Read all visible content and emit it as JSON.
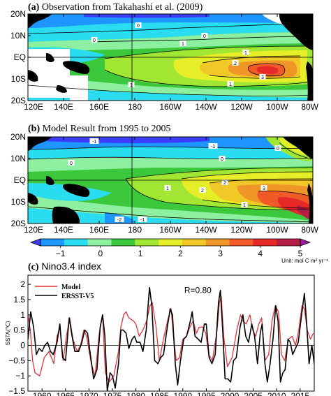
{
  "chart_data": [
    {
      "type": "heatmap",
      "panel": "(a)",
      "title": "Observation from Takahashi et al. (2009)",
      "x_ticks": [
        "120E",
        "140E",
        "160E",
        "180",
        "160W",
        "140W",
        "120W",
        "100W",
        "80W"
      ],
      "y_ticks": [
        "20N",
        "10N",
        "EQ",
        "10S",
        "20S"
      ],
      "xlim": [
        120,
        280
      ],
      "ylim": [
        -20,
        20
      ],
      "contour_labels": [
        "0",
        "0",
        "1",
        "1",
        "2",
        "3",
        "1",
        "0",
        "1"
      ]
    },
    {
      "type": "heatmap",
      "panel": "(b)",
      "title": "Model Result from 1995 to 2005",
      "x_ticks": [
        "120E",
        "140E",
        "160E",
        "180",
        "160W",
        "140W",
        "120W",
        "100W",
        "80W"
      ],
      "y_ticks": [
        "20N",
        "10N",
        "EQ",
        "10S",
        "20S"
      ],
      "xlim": [
        120,
        280
      ],
      "ylim": [
        -20,
        20
      ],
      "contour_labels": [
        "-1",
        "-1",
        "0",
        "0",
        "1",
        "2",
        "2",
        "3",
        "1",
        "-2",
        "-1",
        "0"
      ]
    },
    {
      "type": "colorbar",
      "ticks": [
        "−1",
        "0",
        "1",
        "2",
        "3",
        "4",
        "5"
      ],
      "range": [
        -1.5,
        5
      ],
      "unit": "Unit: mol C m² yr⁻¹",
      "colors": [
        "#3c3cff",
        "#1e96ff",
        "#2adcf0",
        "#8cf0a0",
        "#3cc83c",
        "#a0e632",
        "#e6ee28",
        "#f0c828",
        "#f09628",
        "#f05a28",
        "#e62828",
        "#b41e46",
        "#a01ea0"
      ]
    },
    {
      "type": "line",
      "panel": "(c)",
      "title": "Nino3.4 index",
      "ylabel": "SSTA(℃)",
      "ylim": [
        -1.5,
        2.3
      ],
      "xlim": [
        1957,
        2018
      ],
      "y_ticks": [
        "2",
        "1.5",
        "1",
        "0.5",
        "0",
        "−0.5",
        "−1",
        "−1.5"
      ],
      "x_ticks": [
        "1960",
        "1965",
        "1970",
        "1975",
        "1980",
        "1985",
        "1990",
        "1995",
        "2000",
        "2005",
        "2010",
        "2015"
      ],
      "annotation": "R=0.80",
      "series": [
        {
          "name": "Model",
          "color": "#e8323c",
          "points": [
            [
              1957.0,
              1.0
            ],
            [
              1957.5,
              0.5
            ],
            [
              1958.0,
              -0.5
            ],
            [
              1958.5,
              -0.9
            ],
            [
              1959.5,
              -1.0
            ],
            [
              1960.5,
              -0.4
            ],
            [
              1961.5,
              -0.2
            ],
            [
              1962.5,
              -0.6
            ],
            [
              1963.2,
              0.3
            ],
            [
              1963.8,
              0.6
            ],
            [
              1964.5,
              -0.5
            ],
            [
              1965.2,
              0.3
            ],
            [
              1965.9,
              0.9
            ],
            [
              1966.6,
              0.2
            ],
            [
              1967.5,
              -0.2
            ],
            [
              1968.2,
              0.0
            ],
            [
              1968.9,
              0.5
            ],
            [
              1969.5,
              0.3
            ],
            [
              1970.5,
              -0.6
            ],
            [
              1971.3,
              -1.0
            ],
            [
              1972.2,
              0.4
            ],
            [
              1972.9,
              1.0
            ],
            [
              1973.5,
              -0.9
            ],
            [
              1974.3,
              -1.2
            ],
            [
              1975.3,
              -1.0
            ],
            [
              1976.3,
              -0.2
            ],
            [
              1976.8,
              0.6
            ],
            [
              1977.4,
              1.0
            ],
            [
              1977.9,
              1.1
            ],
            [
              1978.5,
              0.9
            ],
            [
              1979.5,
              0.8
            ],
            [
              1980.0,
              0.7
            ],
            [
              1980.7,
              0.3
            ],
            [
              1981.5,
              0.5
            ],
            [
              1982.3,
              0.8
            ],
            [
              1983.0,
              1.3
            ],
            [
              1983.5,
              1.4
            ],
            [
              1984.3,
              0.6
            ],
            [
              1985.0,
              -0.5
            ],
            [
              1986.0,
              0.3
            ],
            [
              1986.9,
              0.9
            ],
            [
              1987.5,
              1.2
            ],
            [
              1988.0,
              0.3
            ],
            [
              1988.6,
              -0.5
            ],
            [
              1989.3,
              -0.4
            ],
            [
              1990.0,
              0.2
            ],
            [
              1990.8,
              0.3
            ],
            [
              1991.5,
              0.6
            ],
            [
              1992.2,
              0.8
            ],
            [
              1992.9,
              0.4
            ],
            [
              1993.5,
              0.6
            ],
            [
              1994.3,
              0.6
            ],
            [
              1994.9,
              0.4
            ],
            [
              1995.5,
              -0.3
            ],
            [
              1996.3,
              -0.5
            ],
            [
              1997.3,
              0.5
            ],
            [
              1997.8,
              1.4
            ],
            [
              1998.2,
              1.6
            ],
            [
              1998.7,
              0.3
            ],
            [
              1999.5,
              -0.7
            ],
            [
              2000.5,
              -0.4
            ],
            [
              2001.5,
              0.5
            ],
            [
              2002.3,
              1.0
            ],
            [
              2002.8,
              0.8
            ],
            [
              2003.5,
              0.7
            ],
            [
              2004.3,
              1.0
            ],
            [
              2004.9,
              0.5
            ],
            [
              2005.5,
              0.3
            ],
            [
              2006.2,
              0.7
            ],
            [
              2006.8,
              0.9
            ],
            [
              2007.5,
              -0.5
            ],
            [
              2008.3,
              -0.3
            ],
            [
              2009.0,
              0.8
            ],
            [
              2009.7,
              1.3
            ],
            [
              2010.4,
              1.1
            ],
            [
              2011.0,
              -0.3
            ],
            [
              2011.7,
              -0.5
            ],
            [
              2012.5,
              0.2
            ],
            [
              2013.3,
              0.3
            ],
            [
              2014.0,
              0.0
            ],
            [
              2014.7,
              0.5
            ],
            [
              2015.4,
              1.3
            ],
            [
              2015.9,
              1.2
            ],
            [
              2016.5,
              0.5
            ],
            [
              2017.2,
              0.2
            ],
            [
              2017.8,
              0.4
            ]
          ]
        },
        {
          "name": "ERSST-V5",
          "color": "#000000",
          "points": [
            [
              1957.0,
              0.2
            ],
            [
              1957.6,
              1.1
            ],
            [
              1958.2,
              0.6
            ],
            [
              1958.8,
              -0.3
            ],
            [
              1959.4,
              -0.1
            ],
            [
              1960.0,
              -0.2
            ],
            [
              1960.6,
              0.0
            ],
            [
              1961.2,
              0.1
            ],
            [
              1961.8,
              -0.2
            ],
            [
              1962.4,
              -0.3
            ],
            [
              1963.2,
              0.1
            ],
            [
              1963.8,
              0.7
            ],
            [
              1964.4,
              -0.4
            ],
            [
              1965.0,
              -0.5
            ],
            [
              1965.8,
              0.9
            ],
            [
              1966.4,
              0.3
            ],
            [
              1967.0,
              -0.2
            ],
            [
              1967.8,
              -0.2
            ],
            [
              1968.5,
              0.1
            ],
            [
              1969.1,
              0.5
            ],
            [
              1969.7,
              0.4
            ],
            [
              1970.3,
              -0.3
            ],
            [
              1971.0,
              -1.1
            ],
            [
              1971.7,
              -0.8
            ],
            [
              1972.4,
              0.6
            ],
            [
              1972.9,
              1.0
            ],
            [
              1973.4,
              0.3
            ],
            [
              1973.9,
              -1.5
            ],
            [
              1974.5,
              -0.9
            ],
            [
              1975.0,
              -1.0
            ],
            [
              1975.6,
              -1.4
            ],
            [
              1976.3,
              -0.6
            ],
            [
              1976.8,
              0.5
            ],
            [
              1977.3,
              0.5
            ],
            [
              1977.9,
              0.4
            ],
            [
              1978.5,
              -0.1
            ],
            [
              1979.2,
              0.2
            ],
            [
              1979.7,
              0.3
            ],
            [
              1980.2,
              0.1
            ],
            [
              1980.9,
              0.1
            ],
            [
              1981.5,
              -0.2
            ],
            [
              1982.2,
              0.5
            ],
            [
              1982.9,
              1.9
            ],
            [
              1983.4,
              1.3
            ],
            [
              1984.0,
              -0.5
            ],
            [
              1984.7,
              -0.6
            ],
            [
              1985.3,
              -0.4
            ],
            [
              1985.9,
              -0.3
            ],
            [
              1986.5,
              0.4
            ],
            [
              1987.3,
              1.2
            ],
            [
              1987.8,
              1.0
            ],
            [
              1988.4,
              -0.6
            ],
            [
              1988.9,
              -1.3
            ],
            [
              1989.5,
              -0.5
            ],
            [
              1990.2,
              0.2
            ],
            [
              1990.8,
              0.3
            ],
            [
              1991.6,
              0.8
            ],
            [
              1992.0,
              1.1
            ],
            [
              1992.6,
              0.3
            ],
            [
              1993.3,
              0.2
            ],
            [
              1993.9,
              0.1
            ],
            [
              1994.6,
              0.7
            ],
            [
              1995.0,
              0.7
            ],
            [
              1995.6,
              -0.4
            ],
            [
              1996.2,
              -0.6
            ],
            [
              1996.9,
              -0.3
            ],
            [
              1997.6,
              1.4
            ],
            [
              1998.0,
              1.8
            ],
            [
              1998.5,
              0.5
            ],
            [
              1999.0,
              -1.1
            ],
            [
              1999.6,
              -1.1
            ],
            [
              2000.2,
              -1.2
            ],
            [
              2000.8,
              -0.5
            ],
            [
              2001.4,
              -0.4
            ],
            [
              2002.2,
              0.6
            ],
            [
              2002.8,
              1.0
            ],
            [
              2003.4,
              0.3
            ],
            [
              2004.0,
              0.1
            ],
            [
              2004.7,
              0.7
            ],
            [
              2005.3,
              0.3
            ],
            [
              2005.9,
              -0.6
            ],
            [
              2006.5,
              0.4
            ],
            [
              2006.9,
              0.7
            ],
            [
              2007.5,
              -0.6
            ],
            [
              2008.0,
              -1.2
            ],
            [
              2008.6,
              -0.6
            ],
            [
              2009.2,
              0.2
            ],
            [
              2009.8,
              1.3
            ],
            [
              2010.3,
              0.8
            ],
            [
              2010.8,
              -1.2
            ],
            [
              2011.3,
              -0.9
            ],
            [
              2011.8,
              -0.8
            ],
            [
              2012.4,
              0.2
            ],
            [
              2012.9,
              0.1
            ],
            [
              2013.4,
              -0.3
            ],
            [
              2014.0,
              -0.1
            ],
            [
              2014.6,
              0.1
            ],
            [
              2015.3,
              1.0
            ],
            [
              2015.9,
              1.7
            ],
            [
              2016.4,
              0.7
            ],
            [
              2016.9,
              -0.6
            ],
            [
              2017.5,
              0.0
            ],
            [
              2018.0,
              -0.6
            ]
          ]
        }
      ],
      "zero_line": 0
    }
  ]
}
